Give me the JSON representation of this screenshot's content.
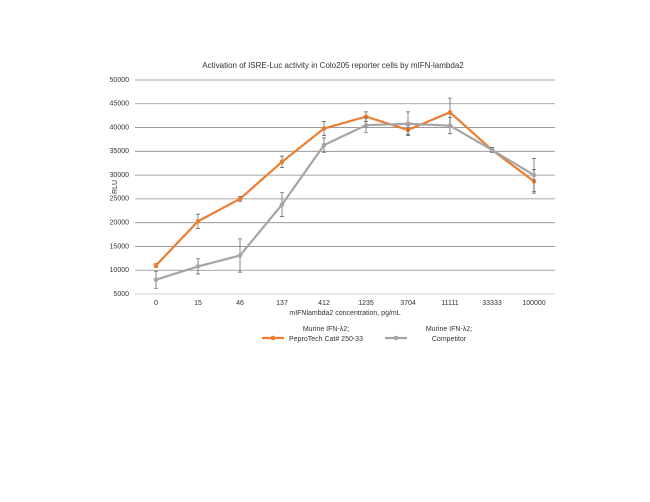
{
  "chart_data": {
    "type": "line",
    "title": "Activation of ISRE-Luc activity in Colo205 reporter cells by mIFN-lambda2",
    "x_label": "mIFNlambda2 concentration, pg/mL",
    "y_label": "RLU",
    "categories": [
      "0",
      "15",
      "46",
      "137",
      "412",
      "1235",
      "3704",
      "11111",
      "33333",
      "100000"
    ],
    "series": [
      {
        "name": "Murine IFN-λ2; PeproTech Cat# 250-33",
        "color": "#ed7d31",
        "values": [
          11000,
          20300,
          25000,
          32800,
          39800,
          42300,
          39500,
          43200,
          35300,
          28700
        ],
        "errors": [
          400,
          1500,
          500,
          1200,
          1500,
          1000,
          900,
          3000,
          500,
          2500
        ]
      },
      {
        "name": "Murine IFN-λ2; Competitor",
        "color": "#a5a5a5",
        "values": [
          8000,
          10800,
          13100,
          23800,
          36300,
          40500,
          40800,
          40400,
          35300,
          30000
        ],
        "errors": [
          1800,
          1600,
          3500,
          2500,
          1500,
          1500,
          2500,
          1700,
          500,
          3500
        ]
      }
    ],
    "ylim": [
      5000,
      50000
    ],
    "yticks": [
      5000,
      10000,
      15000,
      20000,
      25000,
      30000,
      35000,
      40000,
      45000,
      50000
    ],
    "grid": true
  }
}
